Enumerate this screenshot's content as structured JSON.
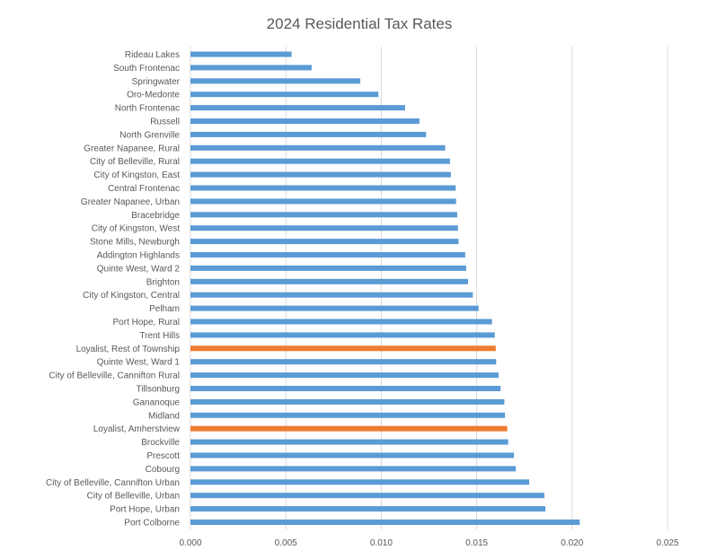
{
  "chart_data": {
    "type": "bar",
    "orientation": "horizontal",
    "title": "2024 Residential  Tax Rates",
    "xlabel": "",
    "ylabel": "",
    "xlim": [
      0,
      0.025
    ],
    "x_ticks": [
      "0.000",
      "0.005",
      "0.010",
      "0.015",
      "0.020",
      "0.025"
    ],
    "x_tick_values": [
      0,
      0.005,
      0.01,
      0.015,
      0.02,
      0.025
    ],
    "grid": true,
    "legend": "none",
    "colors": {
      "default": "#5b9bd5",
      "highlight": "#ed7d31"
    },
    "categories": [
      "Rideau Lakes",
      "South Frontenac",
      "Springwater",
      "Oro-Medonte",
      "North Frontenac",
      "Russell",
      "North Grenville",
      "Greater Napanee, Rural",
      "City of Belleville, Rural",
      "City of Kingston, East",
      "Central Frontenac",
      "Greater Napanee, Urban",
      "Bracebridge",
      "City of Kingston, West",
      "Stone Mills, Newburgh",
      "Addington Highlands",
      "Quinte West, Ward 2",
      "Brighton",
      "City of Kingston, Central",
      "Pelham",
      "Port Hope, Rural",
      "Trent Hills",
      "Loyalist, Rest of Township",
      "Quinte West, Ward 1",
      "City of Belleville, Cannifton Rural",
      "Tillsonburg",
      "Gananoque",
      "Midland",
      "Loyalist, Amherstview",
      "Brockville",
      "Prescott",
      "Cobourg",
      "City of Belleville, Cannifton Urban",
      "City of Belleville, Urban",
      "Port Hope, Urban",
      "Port Colborne"
    ],
    "values": [
      0.0053,
      0.00635,
      0.0089,
      0.00985,
      0.01125,
      0.012,
      0.01235,
      0.01335,
      0.0136,
      0.01365,
      0.0139,
      0.01392,
      0.01398,
      0.01402,
      0.01405,
      0.0144,
      0.01445,
      0.01455,
      0.0148,
      0.0151,
      0.0158,
      0.01595,
      0.016,
      0.01602,
      0.01615,
      0.01625,
      0.01645,
      0.01648,
      0.0166,
      0.01665,
      0.01695,
      0.01705,
      0.01775,
      0.01855,
      0.0186,
      0.0204
    ],
    "highlighted": [
      "Loyalist, Rest of Township",
      "Loyalist, Amherstview"
    ]
  }
}
